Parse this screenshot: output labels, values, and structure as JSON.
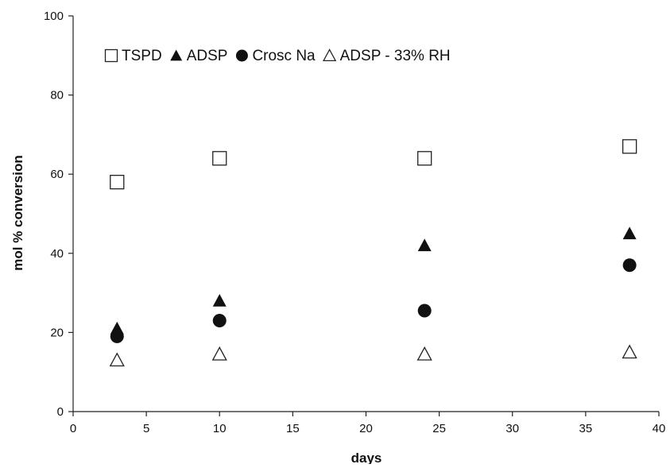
{
  "chart_data": {
    "type": "scatter",
    "title": "",
    "xlabel": "days",
    "ylabel": "mol % conversion",
    "xlim": [
      0,
      40
    ],
    "ylim": [
      0,
      100
    ],
    "x_ticks": [
      0,
      5,
      10,
      15,
      20,
      25,
      30,
      35,
      40
    ],
    "y_ticks": [
      0,
      20,
      40,
      60,
      80,
      100
    ],
    "grid": false,
    "legend_position": "top",
    "series": [
      {
        "name": "TSPD",
        "marker": "open-square",
        "color": "#111111",
        "points": [
          {
            "x": 3,
            "y": 58
          },
          {
            "x": 10,
            "y": 64
          },
          {
            "x": 24,
            "y": 64
          },
          {
            "x": 38,
            "y": 67
          }
        ]
      },
      {
        "name": "ADSP",
        "marker": "filled-triangle",
        "color": "#111111",
        "points": [
          {
            "x": 3,
            "y": 21
          },
          {
            "x": 10,
            "y": 28
          },
          {
            "x": 24,
            "y": 42
          },
          {
            "x": 38,
            "y": 45
          }
        ]
      },
      {
        "name": "Crosc Na",
        "marker": "filled-circle",
        "color": "#111111",
        "points": [
          {
            "x": 3,
            "y": 19
          },
          {
            "x": 10,
            "y": 23
          },
          {
            "x": 24,
            "y": 25.5
          },
          {
            "x": 38,
            "y": 37
          }
        ]
      },
      {
        "name": "ADSP - 33% RH",
        "marker": "open-triangle",
        "color": "#111111",
        "points": [
          {
            "x": 3,
            "y": 13
          },
          {
            "x": 10,
            "y": 14.5
          },
          {
            "x": 24,
            "y": 14.5
          },
          {
            "x": 38,
            "y": 15
          }
        ]
      }
    ]
  }
}
